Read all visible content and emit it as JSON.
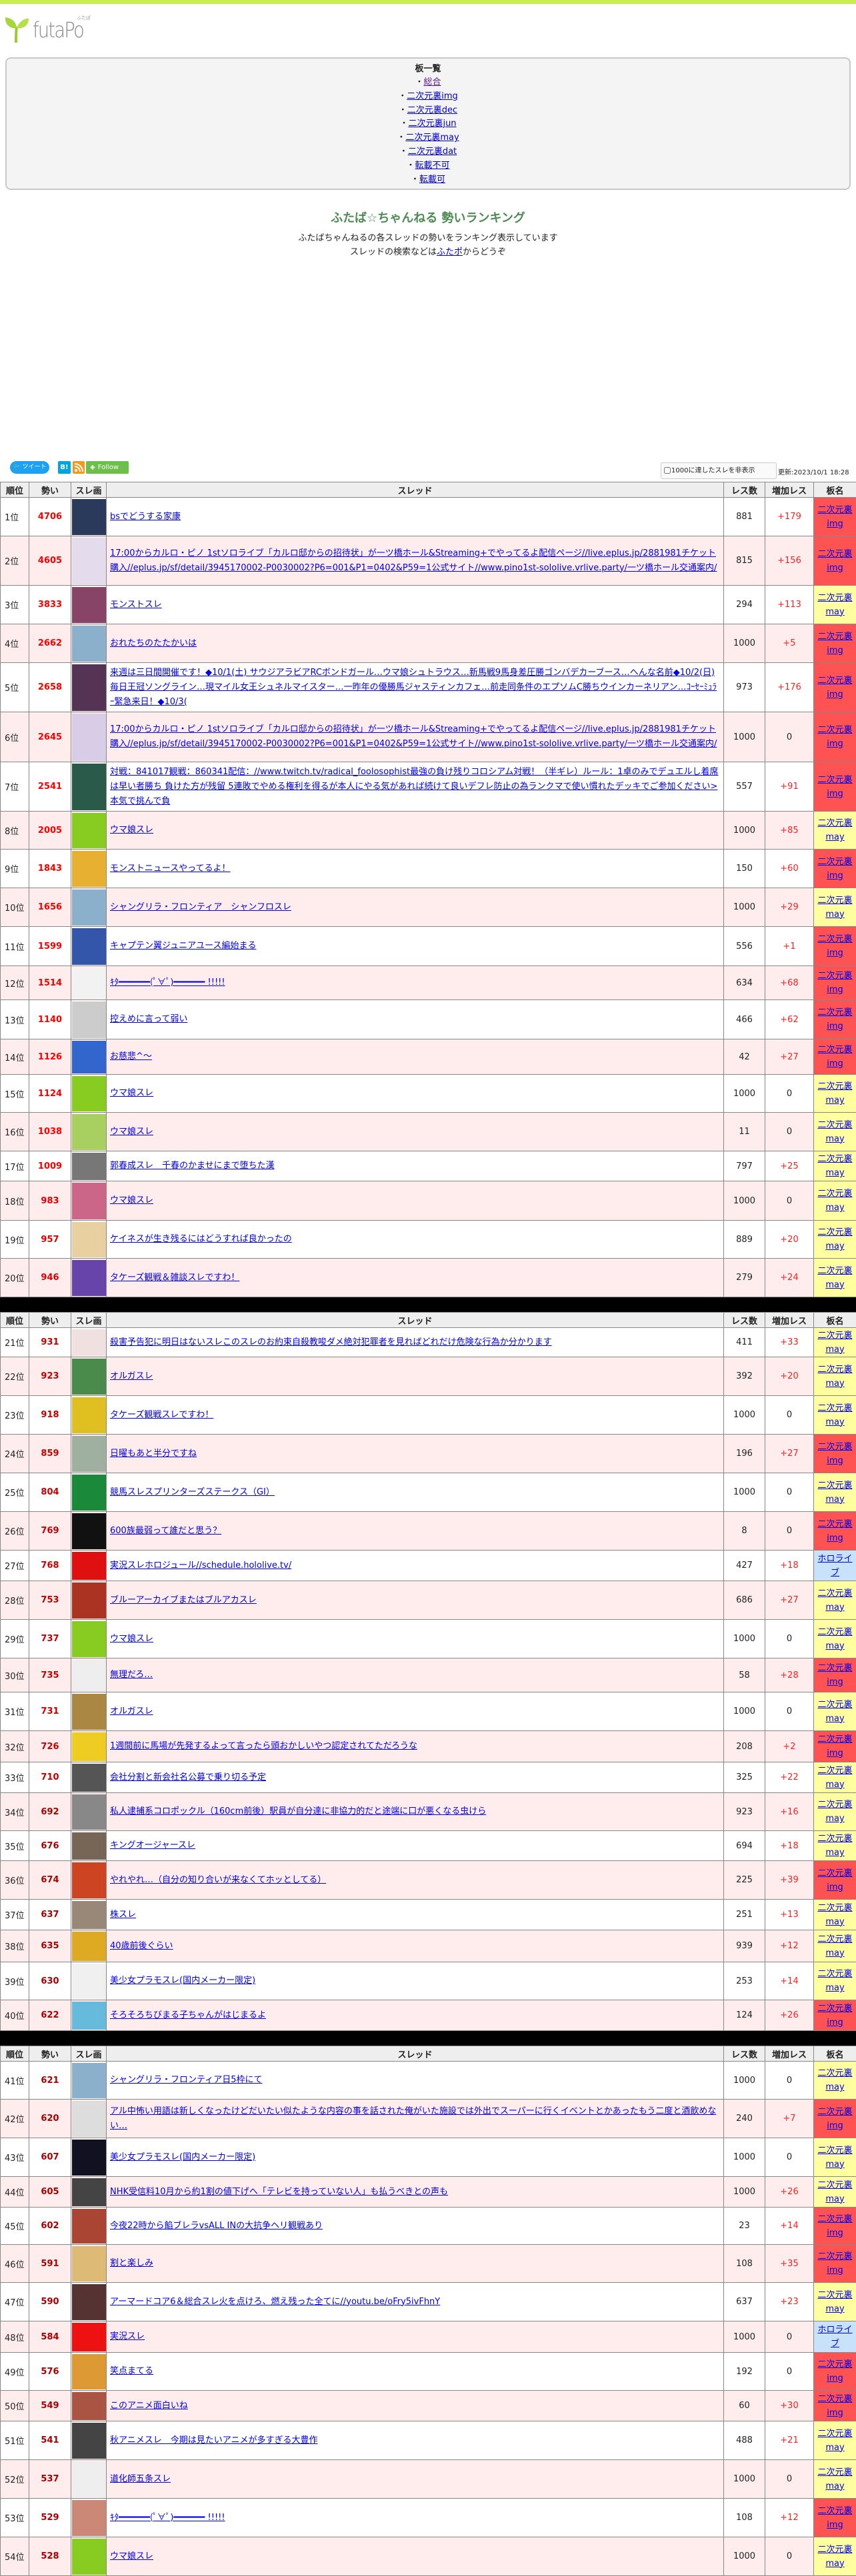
{
  "logo": {
    "text": "futaPo",
    "kana": "ふたぽ"
  },
  "boards": {
    "heading": "板一覧",
    "items": [
      "総合",
      "二次元裏img",
      "二次元裏dec",
      "二次元裏jun",
      "二次元裏may",
      "二次元裏dat",
      "転載不可",
      "転載可"
    ]
  },
  "page": {
    "title": "ふたば☆ちゃんねる 勢いランキング",
    "subtitle": "ふたばちゃんねるの各スレッドの勢いをランキング表示しています",
    "search_prefix": "スレッドの検索などは",
    "search_link": "ふたポ",
    "search_suffix": "からどうぞ"
  },
  "social": {
    "tweet": "ツイート",
    "hatena": "B!",
    "follow": "Follow"
  },
  "options": {
    "hide_1000_label": "1000に達したスレを非表示",
    "updated": "更新:2023/10/1 18:28"
  },
  "columns": [
    "順位",
    "勢い",
    "スレ画",
    "スレッド",
    "レス数",
    "増加レス",
    "板名"
  ],
  "colors": {
    "img_board": "#ff5252",
    "may_board": "#ffffa0",
    "hololive_board": "#c8e2fb",
    "momentum": "#ff0000",
    "increase": "#ff2222",
    "row_alt": "#ffeded"
  },
  "tables": [
    {
      "rows": [
        {
          "rank": "1位",
          "momentum": "4706",
          "title": "bsでどうする家康",
          "res": "881",
          "inc": "+179",
          "board": "二次元裏img",
          "type": "img",
          "thumb_color": "#2a3a5a"
        },
        {
          "rank": "2位",
          "momentum": "4605",
          "title": "17:00からカルロ・ピノ 1stソロライブ「カルロ邸からの招待状」が一ツ橋ホール&Streaming+でやってるよ配信ページ//live.eplus.jp/2881981チケット購入//eplus.jp/sf/detail/3945170002-P0030002?P6=001&P1=0402&P59=1公式サイト//www.pino1st-sololive.vrlive.party/一ツ橋ホール交通案内/",
          "res": "815",
          "inc": "+156",
          "board": "二次元裏img",
          "type": "img",
          "thumb_color": "#e4dcec"
        },
        {
          "rank": "3位",
          "momentum": "3833",
          "title": "モンストスレ",
          "res": "294",
          "inc": "+113",
          "board": "二次元裏may",
          "type": "may",
          "thumb_color": "#884466"
        },
        {
          "rank": "4位",
          "momentum": "2662",
          "title": "おれたちのたたかいは",
          "res": "1000",
          "inc": "+5",
          "board": "二次元裏img",
          "type": "img",
          "thumb_color": "#8ab0cc"
        },
        {
          "rank": "5位",
          "momentum": "2658",
          "title": "来週は三日間開催です！◆10/1(土) サウジアラビアRCボンドガール…ウマ娘シュトラウス…新馬戦9馬身差圧勝ゴンバデカーブース…へんな名前◆10/2(日) 毎日王冠ソングライン…現マイル女王シュネルマイスター…一昨年の優勝馬ジャスティンカフェ…前走同条件のエプソムC勝ちウインカーネリアン…ｺｰｾｰﾐｭﾗｰ緊急来日！◆10/3(",
          "res": "973",
          "inc": "+176",
          "board": "二次元裏img",
          "type": "img",
          "thumb_color": "#553355"
        },
        {
          "rank": "6位",
          "momentum": "2645",
          "title": "17:00からカルロ・ピノ 1stソロライブ「カルロ邸からの招待状」が一ツ橋ホール&Streaming+でやってるよ配信ページ//live.eplus.jp/2881981チケット購入//eplus.jp/sf/detail/3945170002-P0030002?P6=001&P1=0402&P59=1公式サイト//www.pino1st-sololive.vrlive.party/一ツ橋ホール交通案内/",
          "res": "1000",
          "inc": "0",
          "board": "二次元裏img",
          "type": "img",
          "thumb_color": "#d8cce6"
        },
        {
          "rank": "7位",
          "momentum": "2541",
          "title": "対戦：841017観戦：860341配信：//www.twitch.tv/radical_foolosophist最強の負け残りコロシアム対戦！（半ギレ）ルール：1卓のみでデュエルし着席は早い者勝ち 負けた方が残留 5連敗でやめる権利を得るが本人にやる気があれば続けて良いデフレ防止の為ランクマで使い慣れたデッキでご参加ください>本気で挑んで負",
          "res": "557",
          "inc": "+91",
          "board": "二次元裏img",
          "type": "img",
          "thumb_color": "#2a5a4a"
        },
        {
          "rank": "8位",
          "momentum": "2005",
          "title": "ウマ娘スレ",
          "res": "1000",
          "inc": "+85",
          "board": "二次元裏may",
          "type": "may",
          "thumb_color": "#88cc22"
        },
        {
          "rank": "9位",
          "momentum": "1843",
          "title": "モンストニュースやってるよ！",
          "res": "150",
          "inc": "+60",
          "board": "二次元裏img",
          "type": "img",
          "thumb_color": "#e8b030"
        },
        {
          "rank": "10位",
          "momentum": "1656",
          "title": "シャングリラ・フロンティア　シャンフロスレ",
          "res": "1000",
          "inc": "+29",
          "board": "二次元裏may",
          "type": "may",
          "thumb_color": "#8ab0cc"
        },
        {
          "rank": "11位",
          "momentum": "1599",
          "title": "キャプテン翼ジュニアユース編始まる",
          "res": "556",
          "inc": "+1",
          "board": "二次元裏img",
          "type": "img",
          "thumb_color": "#3355aa"
        },
        {
          "rank": "12位",
          "momentum": "1514",
          "title": "ｷﾀ━━━━━━(ﾟ∀ﾟ)━━━━━━ !!!!!",
          "res": "634",
          "inc": "+68",
          "board": "二次元裏img",
          "type": "img",
          "thumb_color": "#f2f2f2"
        },
        {
          "rank": "13位",
          "momentum": "1140",
          "title": "控えめに言って弱い",
          "res": "466",
          "inc": "+62",
          "board": "二次元裏img",
          "type": "img",
          "thumb_color": "#cccccc"
        },
        {
          "rank": "14位",
          "momentum": "1126",
          "title": "お慈悲^～",
          "res": "42",
          "inc": "+27",
          "board": "二次元裏img",
          "type": "img",
          "thumb_color": "#3366cc"
        },
        {
          "rank": "15位",
          "momentum": "1124",
          "title": "ウマ娘スレ",
          "res": "1000",
          "inc": "0",
          "board": "二次元裏may",
          "type": "may",
          "thumb_color": "#88cc22"
        },
        {
          "rank": "16位",
          "momentum": "1038",
          "title": "ウマ娘スレ",
          "res": "11",
          "inc": "0",
          "board": "二次元裏may",
          "type": "may",
          "thumb_color": "#a8d060"
        },
        {
          "rank": "17位",
          "momentum": "1009",
          "title": "郭春成スレ　千春のかませにまで堕ちた漢",
          "res": "797",
          "inc": "+25",
          "board": "二次元裏may",
          "type": "may",
          "thumb_color": "#777777"
        },
        {
          "rank": "18位",
          "momentum": "983",
          "title": "ウマ娘スレ",
          "res": "1000",
          "inc": "0",
          "board": "二次元裏may",
          "type": "may",
          "thumb_color": "#cc6688"
        },
        {
          "rank": "19位",
          "momentum": "957",
          "title": "ケイネスが生き残るにはどうすれば良かったの",
          "res": "889",
          "inc": "+20",
          "board": "二次元裏may",
          "type": "may",
          "thumb_color": "#e8d0a0"
        },
        {
          "rank": "20位",
          "momentum": "946",
          "title": "タケーズ観戦＆雑談スレですわ！",
          "res": "279",
          "inc": "+24",
          "board": "二次元裏may",
          "type": "may",
          "thumb_color": "#6644aa"
        }
      ]
    },
    {
      "rows": [
        {
          "rank": "21位",
          "momentum": "931",
          "title": "殺害予告犯に明日はないスレこのスレのお約束自殺教唆ダメ絶対犯罪者を見ればどれだけ危険な行為か分かります",
          "res": "411",
          "inc": "+33",
          "board": "二次元裏may",
          "type": "may",
          "thumb_color": "#f0e0e0"
        },
        {
          "rank": "22位",
          "momentum": "923",
          "title": "オルガスレ",
          "res": "392",
          "inc": "+20",
          "board": "二次元裏may",
          "type": "may",
          "thumb_color": "#4a8a4a"
        },
        {
          "rank": "23位",
          "momentum": "918",
          "title": "タケーズ観戦スレですわ！",
          "res": "1000",
          "inc": "0",
          "board": "二次元裏may",
          "type": "may",
          "thumb_color": "#e0c020"
        },
        {
          "rank": "24位",
          "momentum": "859",
          "title": "日曜もあと半分ですね",
          "res": "196",
          "inc": "+27",
          "board": "二次元裏img",
          "type": "img",
          "thumb_color": "#a0b0a0"
        },
        {
          "rank": "25位",
          "momentum": "804",
          "title": "競馬スレスプリンターズステークス（GI）",
          "res": "1000",
          "inc": "0",
          "board": "二次元裏may",
          "type": "may",
          "thumb_color": "#1a8a3a"
        },
        {
          "rank": "26位",
          "momentum": "769",
          "title": "600族最弱って誰だと思う？",
          "res": "8",
          "inc": "0",
          "board": "二次元裏img",
          "type": "img",
          "thumb_color": "#111111"
        },
        {
          "rank": "27位",
          "momentum": "768",
          "title": "実況スレホロジュール//schedule.hololive.tv/",
          "res": "427",
          "inc": "+18",
          "board": "ホロライブ",
          "type": "holo",
          "thumb_color": "#e01010"
        },
        {
          "rank": "28位",
          "momentum": "753",
          "title": "ブルーアーカイブまたはブルアカスレ",
          "res": "686",
          "inc": "+27",
          "board": "二次元裏may",
          "type": "may",
          "thumb_color": "#aa3322"
        },
        {
          "rank": "29位",
          "momentum": "737",
          "title": "ウマ娘スレ",
          "res": "1000",
          "inc": "0",
          "board": "二次元裏may",
          "type": "may",
          "thumb_color": "#88cc22"
        },
        {
          "rank": "30位",
          "momentum": "735",
          "title": "無理だろ…",
          "res": "58",
          "inc": "+28",
          "board": "二次元裏img",
          "type": "img",
          "thumb_color": "#eeeeee"
        },
        {
          "rank": "31位",
          "momentum": "731",
          "title": "オルガスレ",
          "res": "1000",
          "inc": "0",
          "board": "二次元裏may",
          "type": "may",
          "thumb_color": "#aa8844"
        },
        {
          "rank": "32位",
          "momentum": "726",
          "title": "1週間前に馬場が先発するよって言ったら頭おかしいやつ認定されてただろうな",
          "res": "208",
          "inc": "+2",
          "board": "二次元裏img",
          "type": "img",
          "thumb_color": "#eecc22"
        },
        {
          "rank": "33位",
          "momentum": "710",
          "title": "会社分割と新会社名公募で乗り切る予定",
          "res": "325",
          "inc": "+22",
          "board": "二次元裏may",
          "type": "may",
          "thumb_color": "#555555"
        },
        {
          "rank": "34位",
          "momentum": "692",
          "title": "私人逮捕系コロポックル（160cm前後）駅員が自分達に非協力的だと途端に口が悪くなる虫けら",
          "res": "923",
          "inc": "+16",
          "board": "二次元裏may",
          "type": "may",
          "thumb_color": "#888888"
        },
        {
          "rank": "35位",
          "momentum": "676",
          "title": "キングオージャースレ",
          "res": "694",
          "inc": "+18",
          "board": "二次元裏may",
          "type": "may",
          "thumb_color": "#776655"
        },
        {
          "rank": "36位",
          "momentum": "674",
          "title": "やれやれ…（自分の知り合いが来なくてホッとしてる）",
          "res": "225",
          "inc": "+39",
          "board": "二次元裏img",
          "type": "img",
          "thumb_color": "#cc4422"
        },
        {
          "rank": "37位",
          "momentum": "637",
          "title": "株スレ",
          "res": "251",
          "inc": "+13",
          "board": "二次元裏may",
          "type": "may",
          "thumb_color": "#998877"
        },
        {
          "rank": "38位",
          "momentum": "635",
          "title": "40歳前後ぐらい",
          "res": "939",
          "inc": "+12",
          "board": "二次元裏may",
          "type": "may",
          "thumb_color": "#ddaa22"
        },
        {
          "rank": "39位",
          "momentum": "630",
          "title": "美少女プラモスレ(国内メーカー限定)",
          "res": "253",
          "inc": "+14",
          "board": "二次元裏may",
          "type": "may",
          "thumb_color": "#f0f0f0"
        },
        {
          "rank": "40位",
          "momentum": "622",
          "title": "そろそろちびまる子ちゃんがはじまるよ",
          "res": "124",
          "inc": "+26",
          "board": "二次元裏img",
          "type": "img",
          "thumb_color": "#66bbdd"
        }
      ]
    },
    {
      "rows": [
        {
          "rank": "41位",
          "momentum": "621",
          "title": "シャングリラ・フロンティア日5枠にて",
          "res": "1000",
          "inc": "0",
          "board": "二次元裏may",
          "type": "may",
          "thumb_color": "#8ab0cc"
        },
        {
          "rank": "42位",
          "momentum": "620",
          "title": "アル中怖い用語は新しくなったけどだいたい似たような内容の事を話された俺がいた施設では外出でスーパーに行くイベントとかあったもう二度と酒飲めない…",
          "res": "240",
          "inc": "+7",
          "board": "二次元裏img",
          "type": "img",
          "thumb_color": "#dddddd"
        },
        {
          "rank": "43位",
          "momentum": "607",
          "title": "美少女プラモスレ(国内メーカー限定)",
          "res": "1000",
          "inc": "0",
          "board": "二次元裏may",
          "type": "may",
          "thumb_color": "#111122"
        },
        {
          "rank": "44位",
          "momentum": "605",
          "title": "NHK受信料10月から約1割の値下げへ「テレビを持っていない人」も払うべきとの声も",
          "res": "1000",
          "inc": "+26",
          "board": "二次元裏may",
          "type": "may",
          "thumb_color": "#444444"
        },
        {
          "rank": "45位",
          "momentum": "602",
          "title": "今夜22時から餡ブレラvsALL INの大抗争ヘリ観戦あり",
          "res": "23",
          "inc": "+14",
          "board": "二次元裏img",
          "type": "img",
          "thumb_color": "#aa4433"
        },
        {
          "rank": "46位",
          "momentum": "591",
          "title": "割と楽しみ",
          "res": "108",
          "inc": "+35",
          "board": "二次元裏img",
          "type": "img",
          "thumb_color": "#ddbb77"
        },
        {
          "rank": "47位",
          "momentum": "590",
          "title": "アーマードコア6＆総合スレ火を点けろ、燃え残った全てに//youtu.be/oFry5ivFhnY",
          "res": "637",
          "inc": "+23",
          "board": "二次元裏may",
          "type": "may",
          "thumb_color": "#553333"
        },
        {
          "rank": "48位",
          "momentum": "584",
          "title": "実況スレ",
          "res": "1000",
          "inc": "0",
          "board": "ホロライブ",
          "type": "holo",
          "thumb_color": "#ee1111"
        },
        {
          "rank": "49位",
          "momentum": "576",
          "title": "笑点まてる",
          "res": "192",
          "inc": "0",
          "board": "二次元裏img",
          "type": "img",
          "thumb_color": "#dd9933"
        },
        {
          "rank": "50位",
          "momentum": "549",
          "title": "このアニメ面白いね",
          "res": "60",
          "inc": "+30",
          "board": "二次元裏img",
          "type": "img",
          "thumb_color": "#aa5544"
        },
        {
          "rank": "51位",
          "momentum": "541",
          "title": "秋アニメスレ　今期は見たいアニメが多すぎる大豊作",
          "res": "488",
          "inc": "+21",
          "board": "二次元裏may",
          "type": "may",
          "thumb_color": "#444444"
        },
        {
          "rank": "52位",
          "momentum": "537",
          "title": "道化師五条スレ",
          "res": "1000",
          "inc": "0",
          "board": "二次元裏may",
          "type": "may",
          "thumb_color": "#eeeeee"
        },
        {
          "rank": "53位",
          "momentum": "529",
          "title": "ｷﾀ━━━━━━(ﾟ∀ﾟ)━━━━━━ !!!!!",
          "res": "108",
          "inc": "+12",
          "board": "二次元裏img",
          "type": "img",
          "thumb_color": "#cc8877"
        },
        {
          "rank": "54位",
          "momentum": "528",
          "title": "ウマ娘スレ",
          "res": "1000",
          "inc": "0",
          "board": "二次元裏may",
          "type": "may",
          "thumb_color": "#88cc22"
        }
      ]
    }
  ]
}
